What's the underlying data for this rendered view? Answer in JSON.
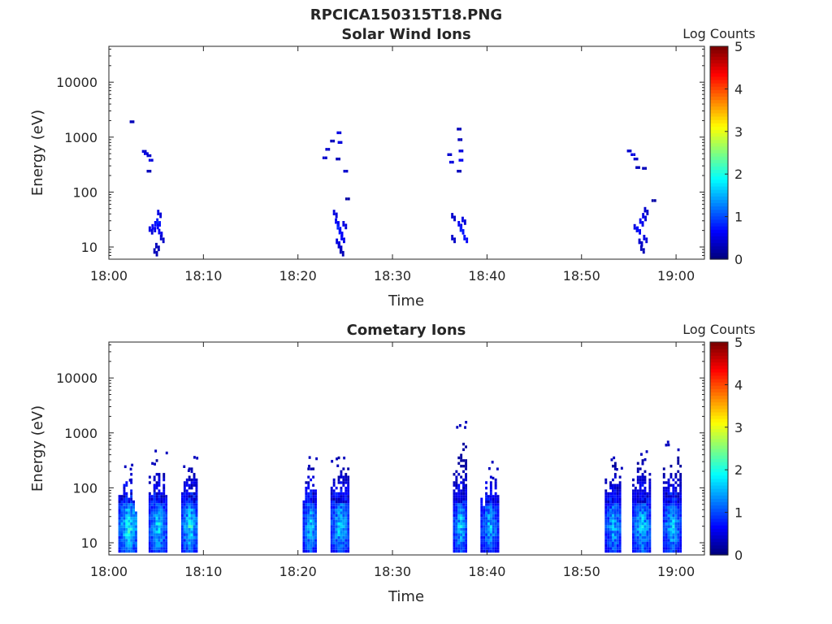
{
  "figure_title": "RPCICA150315T18.PNG",
  "chart_data": [
    {
      "type": "heatmap",
      "title": "Solar Wind Ions",
      "xlabel": "Time",
      "ylabel": "Energy (eV)",
      "x_range": [
        "18:00",
        "19:03"
      ],
      "y_range_eV": [
        6,
        45000
      ],
      "y_scale": "log",
      "x_ticks": [
        "18:00",
        "18:10",
        "18:20",
        "18:30",
        "18:40",
        "18:50",
        "19:00"
      ],
      "x_tick_minutes": [
        0,
        10,
        20,
        30,
        40,
        50,
        60
      ],
      "y_ticks": [
        "10",
        "100",
        "1000",
        "10000"
      ],
      "y_tick_values": [
        10,
        100,
        1000,
        10000
      ],
      "colorbar": {
        "title": "Log Counts",
        "range": [
          0,
          5
        ],
        "ticks": [
          "0",
          "1",
          "2",
          "3",
          "4",
          "5"
        ],
        "colormap": "jet"
      },
      "cells": [
        [
          2.2,
          1900,
          0.3
        ],
        [
          3.5,
          550,
          0.4
        ],
        [
          3.7,
          500,
          0.5
        ],
        [
          4.0,
          460,
          0.4
        ],
        [
          4.2,
          380,
          0.5
        ],
        [
          4.0,
          240,
          0.3
        ],
        [
          4.2,
          20,
          0.5
        ],
        [
          4.5,
          22,
          0.6
        ],
        [
          4.8,
          25,
          0.7
        ],
        [
          5.0,
          28,
          0.8
        ],
        [
          5.2,
          18,
          0.6
        ],
        [
          5.4,
          14,
          0.4
        ],
        [
          5.1,
          40,
          0.5
        ],
        [
          4.9,
          10,
          0.3
        ],
        [
          4.7,
          8,
          0.3
        ],
        [
          22.6,
          420,
          0.4
        ],
        [
          22.9,
          600,
          0.4
        ],
        [
          23.4,
          850,
          0.3
        ],
        [
          24.1,
          1200,
          0.5
        ],
        [
          24.2,
          800,
          0.5
        ],
        [
          24.0,
          400,
          0.3
        ],
        [
          24.8,
          240,
          0.4
        ],
        [
          25.0,
          75,
          0.2
        ],
        [
          23.7,
          40,
          0.5
        ],
        [
          23.9,
          28,
          0.6
        ],
        [
          24.1,
          22,
          0.8
        ],
        [
          24.3,
          18,
          0.7
        ],
        [
          24.5,
          14,
          0.6
        ],
        [
          24.7,
          25,
          0.5
        ],
        [
          24.2,
          10,
          0.4
        ],
        [
          24.4,
          8,
          0.3
        ],
        [
          24.0,
          12,
          0.5
        ],
        [
          35.8,
          480,
          0.4
        ],
        [
          36.0,
          350,
          0.5
        ],
        [
          36.8,
          1400,
          0.3
        ],
        [
          36.9,
          900,
          0.3
        ],
        [
          37.0,
          560,
          0.5
        ],
        [
          37.0,
          380,
          0.6
        ],
        [
          36.8,
          240,
          0.3
        ],
        [
          36.2,
          35,
          0.4
        ],
        [
          36.2,
          14,
          0.4
        ],
        [
          36.9,
          25,
          0.6
        ],
        [
          37.1,
          20,
          0.8
        ],
        [
          37.3,
          30,
          0.5
        ],
        [
          37.5,
          14,
          0.7
        ],
        [
          54.8,
          560,
          0.4
        ],
        [
          55.2,
          480,
          0.5
        ],
        [
          55.5,
          400,
          0.4
        ],
        [
          55.7,
          280,
          0.3
        ],
        [
          56.4,
          270,
          0.3
        ],
        [
          57.4,
          70,
          0.2
        ],
        [
          55.5,
          22,
          0.5
        ],
        [
          55.8,
          20,
          0.7
        ],
        [
          56.1,
          28,
          0.6
        ],
        [
          56.4,
          35,
          0.5
        ],
        [
          56.6,
          45,
          0.4
        ],
        [
          56.0,
          12,
          0.4
        ],
        [
          56.2,
          9,
          0.3
        ],
        [
          56.5,
          14,
          0.5
        ]
      ]
    },
    {
      "type": "heatmap",
      "title": "Cometary Ions",
      "xlabel": "Time",
      "ylabel": "Energy (eV)",
      "x_range": [
        "18:00",
        "19:03"
      ],
      "y_range_eV": [
        6,
        45000
      ],
      "y_scale": "log",
      "x_ticks": [
        "18:00",
        "18:10",
        "18:20",
        "18:30",
        "18:40",
        "18:50",
        "19:00"
      ],
      "x_tick_minutes": [
        0,
        10,
        20,
        30,
        40,
        50,
        60
      ],
      "y_ticks": [
        "10",
        "100",
        "1000",
        "10000"
      ],
      "y_tick_values": [
        10,
        100,
        1000,
        10000
      ],
      "colorbar": {
        "title": "Log Counts",
        "range": [
          0,
          5
        ],
        "ticks": [
          "0",
          "1",
          "2",
          "3",
          "4",
          "5"
        ],
        "colormap": "jet"
      },
      "bursts": [
        {
          "center": 2.0,
          "width": 2.0,
          "top": 250,
          "peak": 2.1
        },
        {
          "center": 5.1,
          "width": 1.8,
          "top": 450,
          "peak": 1.9
        },
        {
          "center": 8.5,
          "width": 1.7,
          "top": 400,
          "peak": 2.0
        },
        {
          "center": 21.2,
          "width": 1.4,
          "top": 400,
          "peak": 1.8
        },
        {
          "center": 24.4,
          "width": 1.9,
          "top": 500,
          "peak": 1.9
        },
        {
          "center": 37.1,
          "width": 1.4,
          "top": 1600,
          "peak": 1.8
        },
        {
          "center": 40.2,
          "width": 1.8,
          "top": 300,
          "peak": 1.7
        },
        {
          "center": 53.3,
          "width": 1.7,
          "top": 400,
          "peak": 1.7
        },
        {
          "center": 56.3,
          "width": 1.9,
          "top": 500,
          "peak": 1.8
        },
        {
          "center": 59.5,
          "width": 1.8,
          "top": 700,
          "peak": 1.8
        }
      ]
    }
  ]
}
